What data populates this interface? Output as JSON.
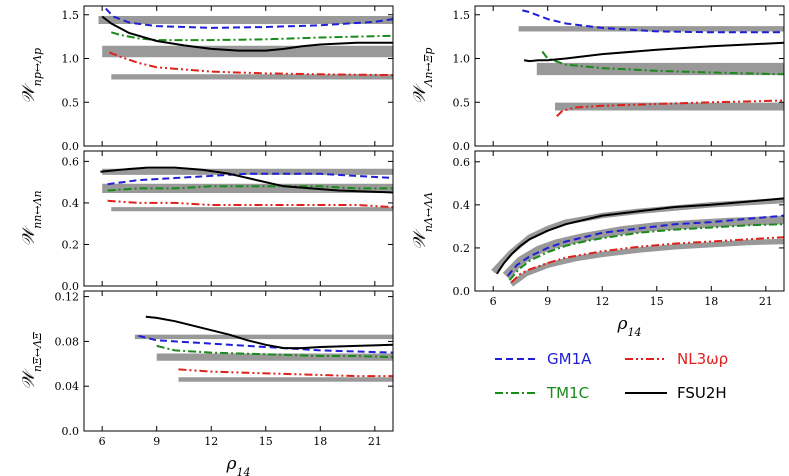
{
  "figure": {
    "legend": {
      "entries": [
        {
          "label": "GM1A",
          "color": "#1f1fd6",
          "style": "dashed"
        },
        {
          "label": "NL3ωρ",
          "color": "#e0201b",
          "style": "dashdotdot"
        },
        {
          "label": "TM1C",
          "color": "#1a8a1a",
          "style": "dashdot"
        },
        {
          "label": "FSU2H",
          "color": "#000000",
          "style": "solid"
        }
      ]
    },
    "colors": {
      "band": "#999999",
      "GM1A": "#1f1fd6",
      "TM1C": "#1a8a1a",
      "NL3": "#e0201b",
      "FSU2H": "#000000"
    }
  },
  "chart_data": [
    {
      "id": "p1",
      "type": "line",
      "ylabel": "𝒲_{np↔Λp}",
      "xlim": [
        5,
        22
      ],
      "ylim": [
        0,
        1.6
      ],
      "yticks": [
        0,
        0.5,
        1.0,
        1.5
      ],
      "ytick_labels": [
        "0.0",
        "0.5",
        "1.0",
        "1.5"
      ],
      "xticks": [
        6,
        9,
        12,
        15,
        18,
        21
      ],
      "xtick_labels": [],
      "grid": false,
      "bands": [
        {
          "x": [
            5.8,
            22
          ],
          "y": 1.44,
          "width": 0.09
        },
        {
          "x": [
            6.0,
            22
          ],
          "y": 1.08,
          "width": 0.13
        },
        {
          "x": [
            6.5,
            22
          ],
          "y": 0.79,
          "width": 0.06
        }
      ],
      "series": [
        {
          "name": "GM1A",
          "x": [
            6.2,
            6.6,
            7.5,
            9,
            12,
            15,
            18,
            21,
            22
          ],
          "y": [
            1.57,
            1.48,
            1.41,
            1.37,
            1.35,
            1.36,
            1.38,
            1.42,
            1.45
          ]
        },
        {
          "name": "TM1C",
          "x": [
            6.5,
            7,
            8,
            9,
            12,
            15,
            18,
            22
          ],
          "y": [
            1.3,
            1.27,
            1.23,
            1.21,
            1.21,
            1.22,
            1.24,
            1.26
          ]
        },
        {
          "name": "NL3ωρ",
          "x": [
            6.4,
            7,
            8,
            9,
            12,
            15,
            18,
            22
          ],
          "y": [
            1.07,
            1.02,
            0.95,
            0.9,
            0.85,
            0.83,
            0.82,
            0.81
          ]
        },
        {
          "name": "FSU2H",
          "x": [
            6.0,
            6.5,
            7.5,
            9,
            10.5,
            12,
            13.5,
            15,
            16,
            17,
            18,
            20,
            22
          ],
          "y": [
            1.48,
            1.4,
            1.29,
            1.2,
            1.15,
            1.11,
            1.09,
            1.09,
            1.11,
            1.14,
            1.16,
            1.18,
            1.18
          ]
        }
      ]
    },
    {
      "id": "p2",
      "type": "line",
      "ylabel": "𝒲_{Λn↔Ξp}",
      "xlim": [
        5,
        22
      ],
      "ylim": [
        0,
        1.6
      ],
      "yticks": [
        0,
        0.5,
        1.0,
        1.5
      ],
      "ytick_labels": [
        "0.0",
        "0.5",
        "1.0",
        "1.5"
      ],
      "xticks": [
        6,
        9,
        12,
        15,
        18,
        21
      ],
      "xtick_labels": [],
      "grid": false,
      "bands": [
        {
          "x": [
            7.4,
            22
          ],
          "y": 1.34,
          "width": 0.06
        },
        {
          "x": [
            8.4,
            22
          ],
          "y": 0.88,
          "width": 0.14
        },
        {
          "x": [
            9.4,
            22
          ],
          "y": 0.45,
          "width": 0.09
        }
      ],
      "series": [
        {
          "name": "GM1A",
          "x": [
            7.6,
            8,
            9,
            10,
            12,
            15,
            18,
            21,
            22
          ],
          "y": [
            1.55,
            1.53,
            1.45,
            1.4,
            1.35,
            1.31,
            1.3,
            1.3,
            1.3
          ]
        },
        {
          "name": "TM1C",
          "x": [
            8.7,
            9,
            10,
            12,
            15,
            18,
            22
          ],
          "y": [
            1.08,
            1.0,
            0.93,
            0.89,
            0.86,
            0.84,
            0.82
          ]
        },
        {
          "name": "NL3ωρ",
          "x": [
            9.5,
            9.8,
            10.5,
            12,
            15,
            18,
            22
          ],
          "y": [
            0.34,
            0.4,
            0.44,
            0.46,
            0.48,
            0.5,
            0.52
          ]
        },
        {
          "name": "FSU2H",
          "x": [
            7.7,
            8.0,
            8.5,
            9,
            10,
            12,
            15,
            18,
            22
          ],
          "y": [
            0.98,
            0.97,
            0.98,
            0.98,
            1.0,
            1.05,
            1.1,
            1.14,
            1.18
          ]
        }
      ]
    },
    {
      "id": "p3",
      "type": "line",
      "ylabel": "𝒲_{nn↔Λn}",
      "xlim": [
        5,
        22
      ],
      "ylim": [
        0,
        0.65
      ],
      "yticks": [
        0,
        0.2,
        0.4,
        0.6
      ],
      "ytick_labels": [
        "0.0",
        "0.2",
        "0.4",
        "0.6"
      ],
      "xticks": [
        6,
        9,
        12,
        15,
        18,
        21
      ],
      "xtick_labels": [],
      "grid": false,
      "bands": [
        {
          "x": [
            6.0,
            22
          ],
          "y": 0.55,
          "width": 0.03
        },
        {
          "x": [
            6.0,
            22
          ],
          "y": 0.47,
          "width": 0.045
        },
        {
          "x": [
            6.5,
            22
          ],
          "y": 0.37,
          "width": 0.02
        }
      ],
      "series": [
        {
          "name": "GM1A",
          "x": [
            6.3,
            8,
            10,
            12,
            14,
            16,
            18,
            20,
            22
          ],
          "y": [
            0.49,
            0.51,
            0.52,
            0.53,
            0.54,
            0.54,
            0.54,
            0.53,
            0.52
          ]
        },
        {
          "name": "TM1C",
          "x": [
            6.3,
            8,
            10,
            12,
            14,
            16,
            18,
            20,
            22
          ],
          "y": [
            0.46,
            0.47,
            0.47,
            0.48,
            0.48,
            0.48,
            0.48,
            0.47,
            0.47
          ]
        },
        {
          "name": "NL3ωρ",
          "x": [
            6.3,
            8,
            10,
            12,
            14,
            16,
            18,
            20,
            22
          ],
          "y": [
            0.41,
            0.4,
            0.4,
            0.39,
            0.39,
            0.39,
            0.39,
            0.39,
            0.38
          ]
        },
        {
          "name": "FSU2H",
          "x": [
            5.9,
            7,
            8.5,
            10,
            11.5,
            13,
            14.5,
            16,
            17.5,
            19,
            20.5,
            22
          ],
          "y": [
            0.55,
            0.56,
            0.57,
            0.57,
            0.56,
            0.54,
            0.51,
            0.48,
            0.47,
            0.46,
            0.455,
            0.45
          ]
        }
      ]
    },
    {
      "id": "p4",
      "type": "line",
      "ylabel": "𝒲_{nΛ↔ΛΛ}",
      "xlabel": "ρ_{14}",
      "xlim": [
        5,
        22
      ],
      "ylim": [
        0,
        0.65
      ],
      "yticks": [
        0,
        0.2,
        0.4,
        0.6
      ],
      "ytick_labels": [
        "0.0",
        "0.2",
        "0.4",
        "0.6"
      ],
      "xticks": [
        6,
        9,
        12,
        15,
        18,
        21
      ],
      "xtick_labels": [
        "6",
        "9",
        "12",
        "15",
        "18",
        "21"
      ],
      "grid": false,
      "bands": [
        {
          "x": [
            6.0,
            7,
            8,
            9,
            10,
            12,
            14,
            16,
            18,
            20,
            22
          ],
          "ys": [
            0.09,
            0.18,
            0.25,
            0.29,
            0.32,
            0.35,
            0.37,
            0.385,
            0.4,
            0.41,
            0.42
          ],
          "width": 0.025
        },
        {
          "x": [
            6.7,
            7.5,
            8.5,
            9.5,
            11,
            13,
            15,
            17,
            19,
            22
          ],
          "ys": [
            0.07,
            0.14,
            0.19,
            0.22,
            0.25,
            0.28,
            0.3,
            0.31,
            0.32,
            0.33
          ],
          "width": 0.04
        },
        {
          "x": [
            7.0,
            7.8,
            9,
            10.5,
            12,
            14,
            16,
            18,
            20,
            22
          ],
          "ys": [
            0.03,
            0.08,
            0.12,
            0.15,
            0.17,
            0.19,
            0.205,
            0.215,
            0.225,
            0.23
          ],
          "width": 0.025
        }
      ],
      "series": [
        {
          "name": "GM1A",
          "x": [
            6.8,
            7.3,
            8,
            9,
            10,
            11,
            12,
            14,
            16,
            18,
            20,
            22
          ],
          "y": [
            0.07,
            0.12,
            0.16,
            0.2,
            0.23,
            0.25,
            0.27,
            0.29,
            0.31,
            0.32,
            0.335,
            0.35
          ]
        },
        {
          "name": "TM1C",
          "x": [
            6.9,
            7.4,
            8,
            9,
            10,
            11,
            12,
            14,
            16,
            18,
            20,
            22
          ],
          "y": [
            0.05,
            0.1,
            0.14,
            0.18,
            0.21,
            0.23,
            0.245,
            0.27,
            0.285,
            0.295,
            0.305,
            0.31
          ]
        },
        {
          "name": "NL3ωρ",
          "x": [
            7.0,
            7.5,
            8,
            9,
            10,
            11,
            12,
            14,
            16,
            18,
            20,
            22
          ],
          "y": [
            0.04,
            0.08,
            0.1,
            0.13,
            0.155,
            0.17,
            0.185,
            0.205,
            0.22,
            0.23,
            0.24,
            0.25
          ]
        },
        {
          "name": "FSU2H",
          "x": [
            6.2,
            6.6,
            7,
            7.5,
            8,
            9,
            10,
            11,
            12,
            14,
            16,
            18,
            20,
            22
          ],
          "y": [
            0.08,
            0.13,
            0.17,
            0.21,
            0.24,
            0.28,
            0.31,
            0.33,
            0.35,
            0.37,
            0.39,
            0.4,
            0.415,
            0.43
          ]
        }
      ]
    },
    {
      "id": "p5",
      "type": "line",
      "ylabel": "𝒲_{nΞ↔ΛΞ}",
      "xlabel": "ρ_{14}",
      "xlim": [
        5,
        22
      ],
      "ylim": [
        0,
        0.125
      ],
      "yticks": [
        0,
        0.04,
        0.08,
        0.12
      ],
      "ytick_labels": [
        "0.0",
        "0.04",
        "0.08",
        "0.12"
      ],
      "xticks": [
        6,
        9,
        12,
        15,
        18,
        21
      ],
      "xtick_labels": [
        "6",
        "9",
        "12",
        "15",
        "18",
        "21"
      ],
      "grid": false,
      "bands": [
        {
          "x": [
            7.8,
            22
          ],
          "y": 0.084,
          "width": 0.004
        },
        {
          "x": [
            9.0,
            22
          ],
          "y": 0.066,
          "width": 0.0065
        },
        {
          "x": [
            10.2,
            22
          ],
          "y": 0.046,
          "width": 0.004
        }
      ],
      "series": [
        {
          "name": "GM1A",
          "x": [
            8.0,
            9,
            10,
            12,
            14,
            16,
            18,
            20,
            22
          ],
          "y": [
            0.085,
            0.081,
            0.08,
            0.078,
            0.076,
            0.074,
            0.072,
            0.071,
            0.07
          ]
        },
        {
          "name": "TM1C",
          "x": [
            9.0,
            10,
            12,
            14,
            16,
            18,
            20,
            22
          ],
          "y": [
            0.076,
            0.072,
            0.07,
            0.069,
            0.068,
            0.067,
            0.067,
            0.066
          ]
        },
        {
          "name": "NL3ωρ",
          "x": [
            10.2,
            12,
            14,
            16,
            18,
            20,
            22
          ],
          "y": [
            0.055,
            0.053,
            0.052,
            0.051,
            0.05,
            0.049,
            0.049
          ]
        },
        {
          "name": "FSU2H",
          "x": [
            8.4,
            9,
            10,
            11,
            12,
            13,
            14,
            15,
            16,
            17,
            18,
            20,
            22
          ],
          "y": [
            0.102,
            0.101,
            0.098,
            0.094,
            0.09,
            0.086,
            0.081,
            0.077,
            0.074,
            0.074,
            0.075,
            0.076,
            0.077
          ]
        }
      ]
    }
  ]
}
